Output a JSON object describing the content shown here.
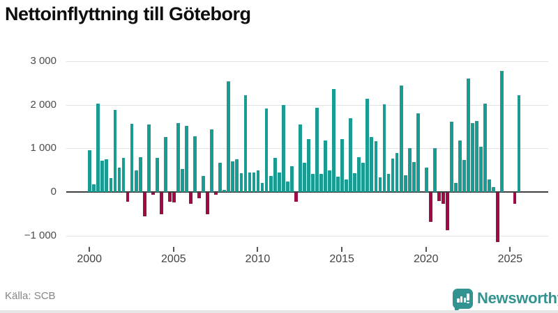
{
  "title": "Nettoinflyttning till Göteborg",
  "source": "Källa: SCB",
  "brand": {
    "name": "Newsworthy",
    "color": "#339390",
    "badge_icon": "bar-chart-speech-bubble"
  },
  "chart_data": {
    "type": "bar",
    "title": "Nettoinflyttning till Göteborg",
    "x_unit": "quarter",
    "start": "2000 Q1",
    "end": "2025 Q3",
    "series_by_year": {
      "2000": [
        950,
        175,
        2020,
        715
      ],
      "2001": [
        750,
        315,
        1875,
        565
      ],
      "2002": [
        785,
        -200,
        1570,
        500
      ],
      "2003": [
        800,
        -550,
        1545,
        -50
      ],
      "2004": [
        780,
        -490,
        1255,
        -210
      ],
      "2005": [
        -225,
        1585,
        520,
        1515
      ],
      "2006": [
        -250,
        1270,
        -120,
        365
      ],
      "2007": [
        -500,
        1440,
        -50,
        670
      ],
      "2008": [
        55,
        2540,
        705,
        755
      ],
      "2009": [
        425,
        2220,
        440,
        450
      ],
      "2010": [
        490,
        210,
        1910,
        365
      ],
      "2011": [
        785,
        440,
        1990,
        240
      ],
      "2012": [
        590,
        -200,
        1550,
        665
      ],
      "2013": [
        1220,
        410,
        1935,
        410
      ],
      "2014": [
        1185,
        490,
        2365,
        355
      ],
      "2015": [
        1205,
        280,
        1685,
        425
      ],
      "2016": [
        800,
        670,
        2140,
        1265
      ],
      "2017": [
        1165,
        330,
        2010,
        415
      ],
      "2018": [
        770,
        890,
        2435,
        390
      ],
      "2019": [
        1000,
        680,
        1810,
        0
      ],
      "2020": [
        555,
        -665,
        1010,
        -190
      ],
      "2021": [
        -260,
        -860,
        1610,
        205
      ],
      "2022": [
        1175,
        730,
        2600,
        1585
      ],
      "2023": [
        1620,
        1035,
        2030,
        280
      ],
      "2024": [
        110,
        -1130,
        2780,
        0
      ],
      "2025": [
        0,
        -250,
        2210
      ]
    },
    "xtick_labels": [
      "2000",
      "2005",
      "2010",
      "2015",
      "2020",
      "2025"
    ],
    "ytick_values": [
      3000,
      2000,
      1000,
      0,
      -1000
    ],
    "ytick_labels": [
      "3 000",
      "2 000",
      "1 000",
      "0",
      "−1 000"
    ],
    "ylim": [
      -1250,
      3150
    ],
    "grid": "horizontal",
    "legend": "none",
    "bar_color_positive": "#1a9c93",
    "bar_color_negative": "#9e0c46"
  }
}
